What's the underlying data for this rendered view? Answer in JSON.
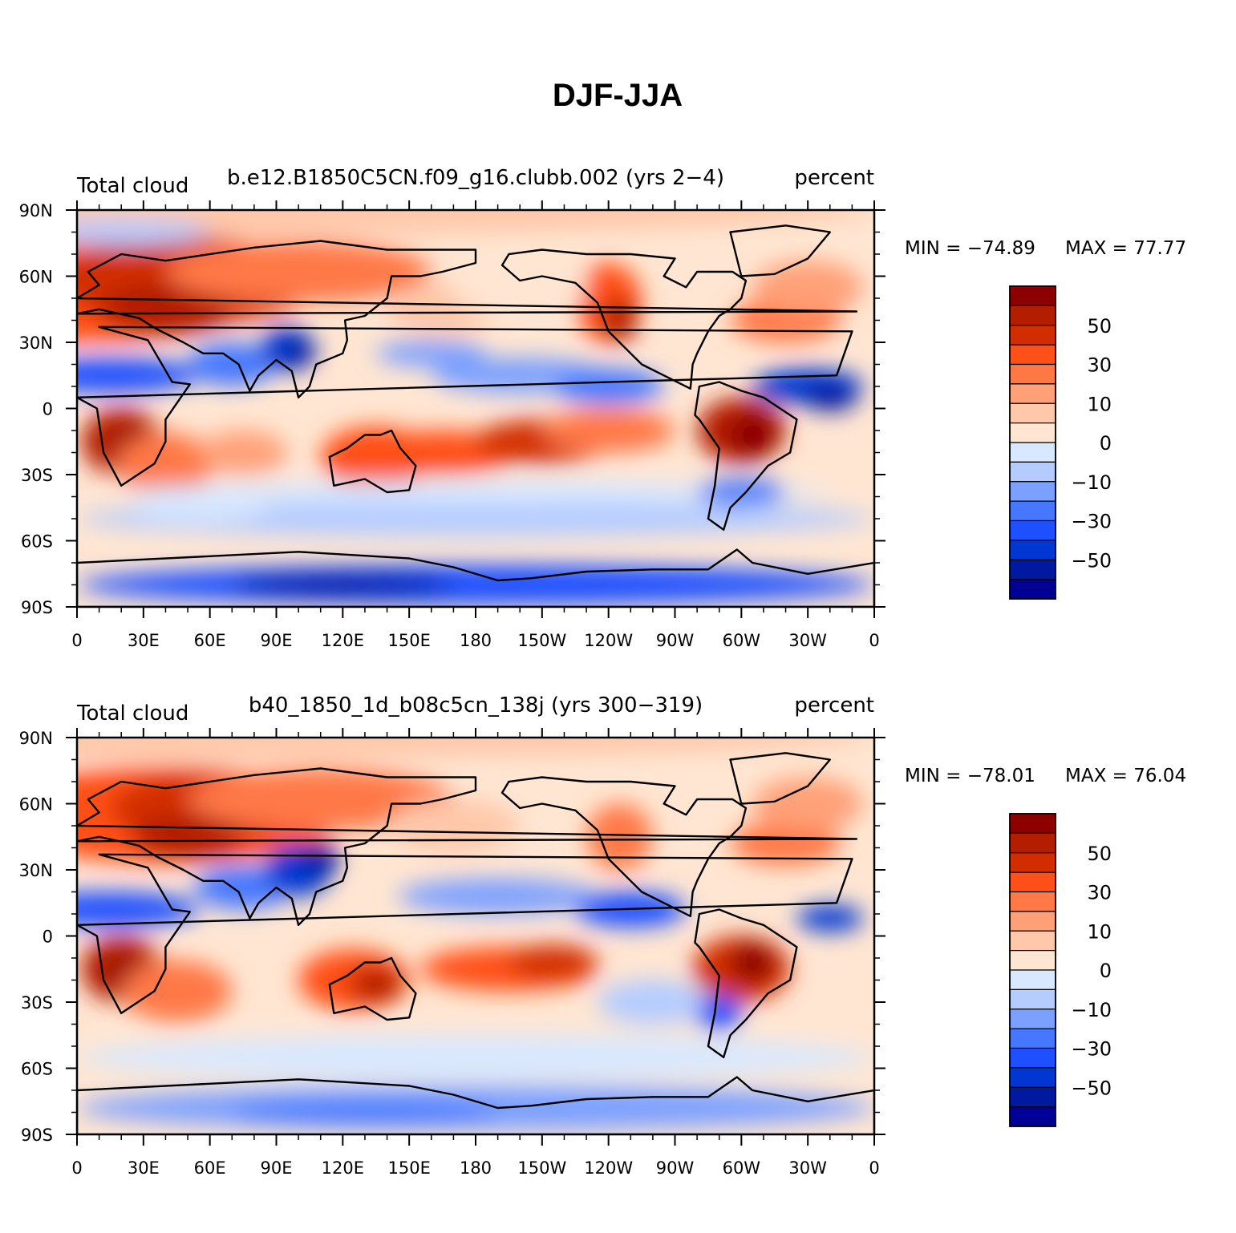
{
  "figure": {
    "title": "DJF-JJA"
  },
  "colors": {
    "levels": [
      "#000096",
      "#0019a0",
      "#0037d2",
      "#1e50ff",
      "#4678ff",
      "#7ca0ff",
      "#b4ccff",
      "#d8e8ff",
      "#ffe6d2",
      "#ffc8aa",
      "#ffa078",
      "#ff7846",
      "#ff5019",
      "#d22d00",
      "#b41e00",
      "#8c0000"
    ],
    "contour": "#000000"
  },
  "colorbar": {
    "labels": [
      "50",
      "30",
      "10",
      "0",
      "−10",
      "−30",
      "−50"
    ]
  },
  "axes": {
    "x_ticks": [
      "0",
      "30E",
      "60E",
      "90E",
      "120E",
      "150E",
      "180",
      "150W",
      "120W",
      "90W",
      "60W",
      "30W",
      "0"
    ],
    "y_ticks": [
      "90N",
      "60N",
      "30N",
      "0",
      "30S",
      "60S",
      "90S"
    ]
  },
  "panels": [
    {
      "left_label": "Total cloud",
      "center_label": "b.e12.B1850C5CN.f09_g16.clubb.002 (yrs 2−4)",
      "right_label": "percent",
      "min_text": "MIN = −74.89",
      "max_text": "MAX =   77.77"
    },
    {
      "left_label": "Total cloud",
      "center_label": "b40_1850_1d_b08c5cn_138j (yrs 300−319)",
      "right_label": "percent",
      "min_text": "MIN = −78.01",
      "max_text": "MAX =   76.04"
    }
  ],
  "chart_data": {
    "type": "heatmap",
    "title": "DJF-JJA",
    "variable": "Total cloud",
    "units": "percent",
    "colorbar_ticks": [
      50,
      30,
      10,
      0,
      -10,
      -30,
      -50
    ],
    "xlim": [
      0,
      360
    ],
    "ylim": [
      -90,
      90
    ],
    "panels": [
      {
        "case": "b.e12.B1850C5CN.f09_g16.clubb.002 (yrs 2−4)",
        "min": -74.89,
        "max": 77.77
      },
      {
        "case": "b40_1850_1d_b08c5cn_138j (yrs 300−319)",
        "min": -78.01,
        "max": 76.04
      }
    ]
  }
}
